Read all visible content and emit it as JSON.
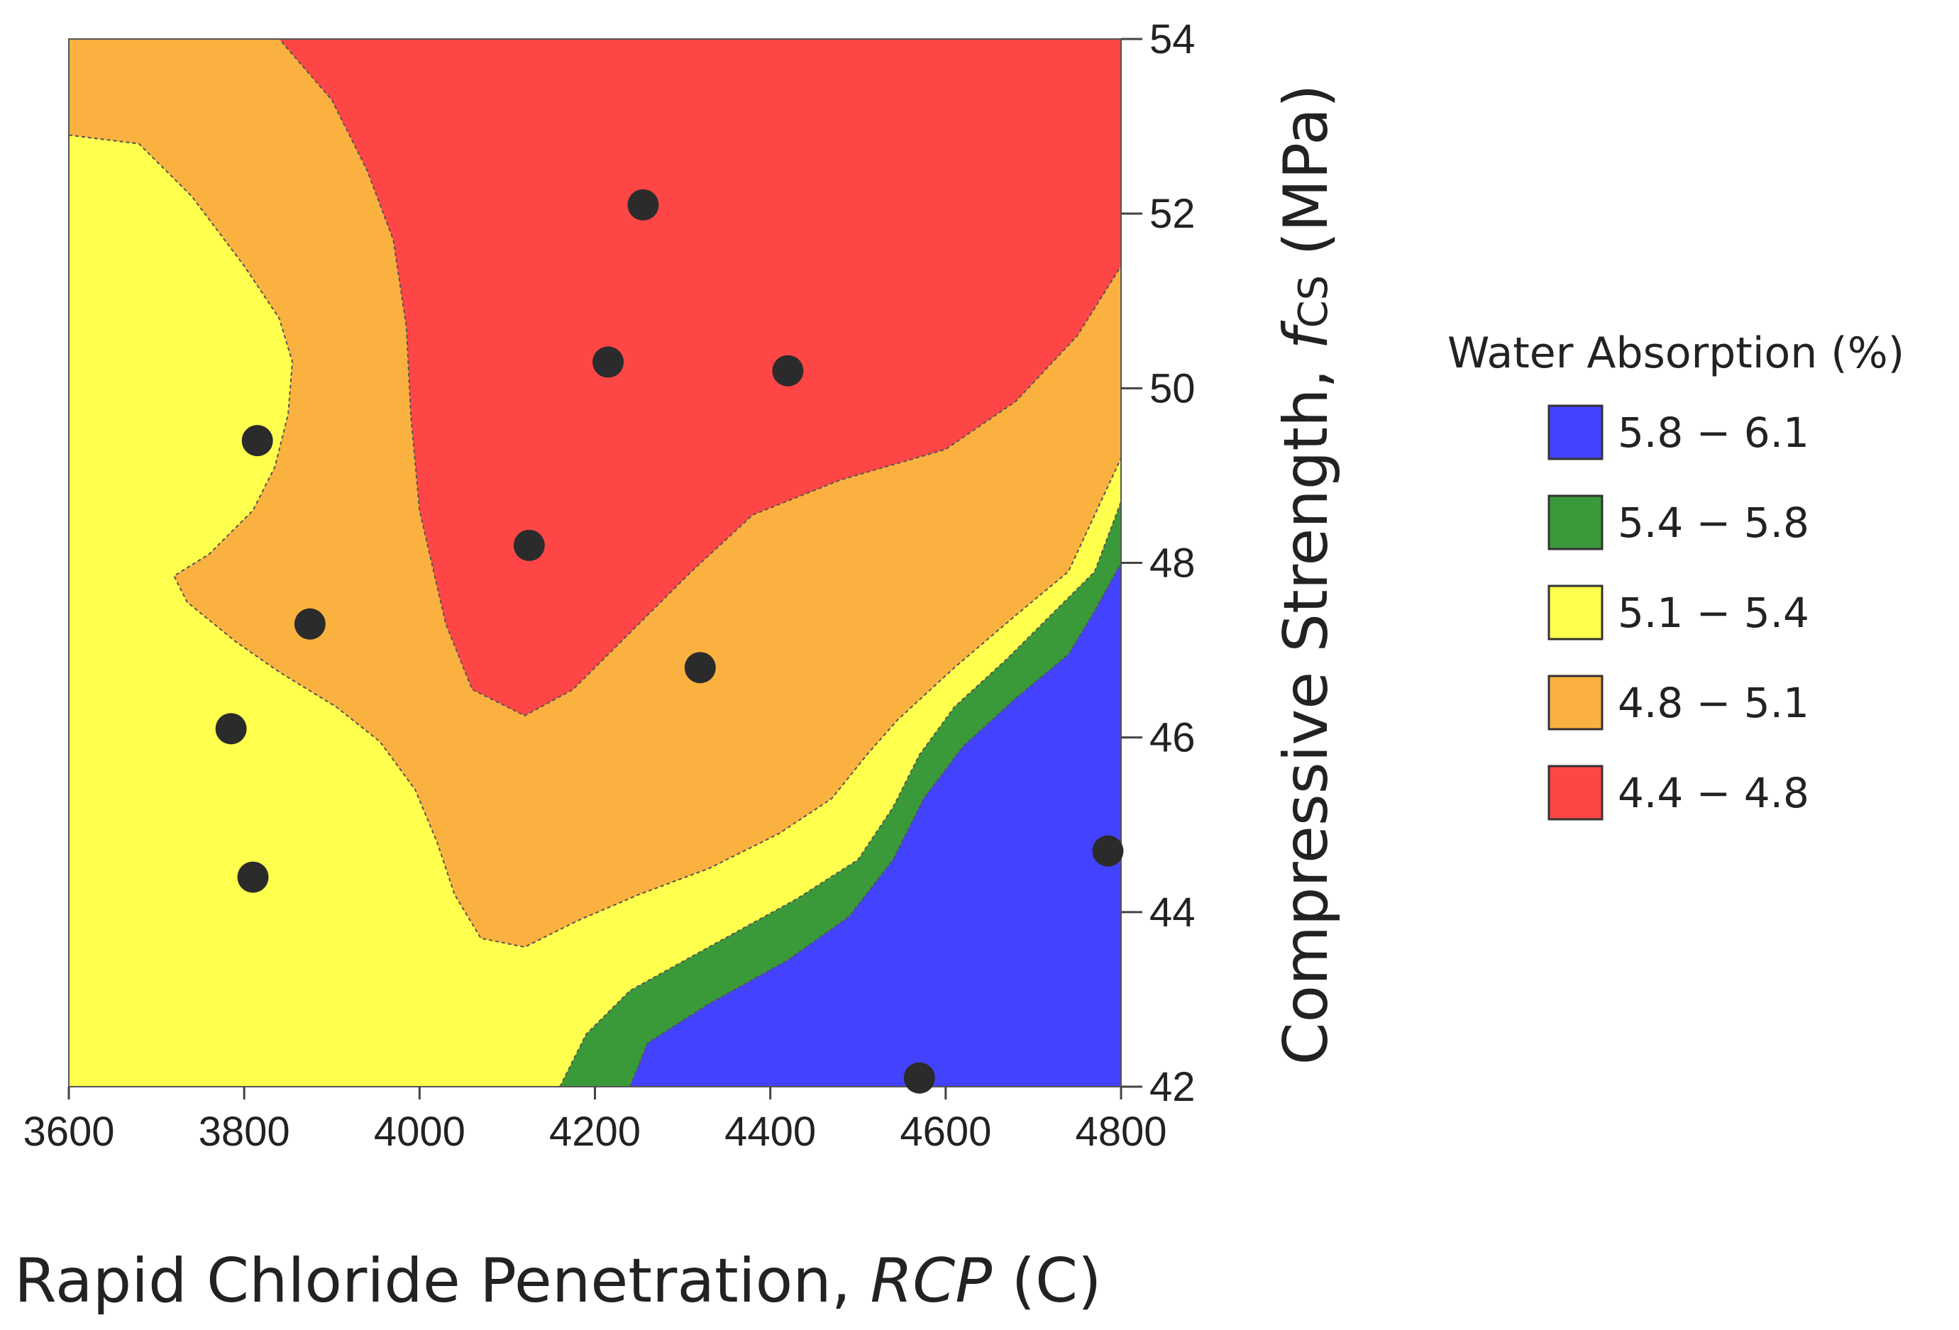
{
  "chart_data": {
    "type": "contour",
    "title": "",
    "xlabel": {
      "main": "Rapid Chloride Penetration, ",
      "italic": "RCP",
      "suffix": " (C)"
    },
    "ylabel": {
      "main": "Compressive Strength, ",
      "italic": "f",
      "subscript": "CS",
      "suffix": " (MPa)"
    },
    "xlim": [
      3600,
      4800
    ],
    "ylim": [
      42,
      54
    ],
    "xticks": [
      3600,
      3800,
      4000,
      4200,
      4400,
      4600,
      4800
    ],
    "yticks": [
      42,
      44,
      46,
      48,
      50,
      52,
      54
    ],
    "legend": {
      "title": "Water Absorption (%)",
      "position": "right",
      "entries": [
        {
          "label": "5.8 − 6.1",
          "color": "#4343ff"
        },
        {
          "label": "5.4 − 5.8",
          "color": "#3a9a3a"
        },
        {
          "label": "5.1 − 5.4",
          "color": "#ffff4d"
        },
        {
          "label": "4.8 − 5.1",
          "color": "#fbb140"
        },
        {
          "label": "4.4 − 4.8",
          "color": "#ff4646"
        }
      ]
    },
    "regions": [
      {
        "range": "4.8 − 5.1",
        "color": "#fbb140",
        "boundary": [
          [
            3600,
            54
          ],
          [
            4800,
            54
          ],
          [
            4800,
            42
          ],
          [
            3600,
            42
          ]
        ]
      },
      {
        "range": "5.1 − 5.4",
        "color": "#ffff4d",
        "boundary": [
          [
            3600,
            52.9
          ],
          [
            3680,
            52.8
          ],
          [
            3740,
            52.2
          ],
          [
            3800,
            51.4
          ],
          [
            3840,
            50.8
          ],
          [
            3855,
            50.3
          ],
          [
            3850,
            49.7
          ],
          [
            3835,
            49.1
          ],
          [
            3810,
            48.6
          ],
          [
            3760,
            48.1
          ],
          [
            3720,
            47.85
          ],
          [
            3735,
            47.55
          ],
          [
            3790,
            47.1
          ],
          [
            3840,
            46.75
          ],
          [
            3905,
            46.35
          ],
          [
            3955,
            45.95
          ],
          [
            3995,
            45.4
          ],
          [
            4020,
            44.8
          ],
          [
            4040,
            44.2
          ],
          [
            4070,
            43.7
          ],
          [
            4120,
            43.6
          ],
          [
            4180,
            43.9
          ],
          [
            4250,
            44.2
          ],
          [
            4330,
            44.5
          ],
          [
            4410,
            44.9
          ],
          [
            4470,
            45.3
          ],
          [
            4510,
            45.8
          ],
          [
            4545,
            46.2
          ],
          [
            4610,
            46.8
          ],
          [
            4680,
            47.4
          ],
          [
            4740,
            47.9
          ],
          [
            4800,
            49.2
          ],
          [
            4800,
            42
          ],
          [
            3600,
            42
          ]
        ]
      },
      {
        "range": "5.4 − 5.8",
        "color": "#3a9a3a",
        "boundary": [
          [
            4160,
            42
          ],
          [
            4190,
            42.6
          ],
          [
            4240,
            43.1
          ],
          [
            4330,
            43.6
          ],
          [
            4430,
            44.15
          ],
          [
            4500,
            44.6
          ],
          [
            4540,
            45.2
          ],
          [
            4570,
            45.8
          ],
          [
            4610,
            46.35
          ],
          [
            4670,
            46.9
          ],
          [
            4730,
            47.5
          ],
          [
            4770,
            47.9
          ],
          [
            4800,
            48.7
          ],
          [
            4800,
            42
          ]
        ]
      },
      {
        "range": "5.8 − 6.1",
        "color": "#4343ff",
        "boundary": [
          [
            4240,
            42
          ],
          [
            4260,
            42.5
          ],
          [
            4330,
            42.95
          ],
          [
            4420,
            43.45
          ],
          [
            4490,
            43.95
          ],
          [
            4540,
            44.6
          ],
          [
            4575,
            45.3
          ],
          [
            4620,
            45.9
          ],
          [
            4680,
            46.45
          ],
          [
            4740,
            46.95
          ],
          [
            4770,
            47.45
          ],
          [
            4800,
            48.0
          ],
          [
            4800,
            42
          ]
        ]
      },
      {
        "range": "4.4 − 4.8",
        "color": "#ff4646",
        "boundary": [
          [
            3840,
            54
          ],
          [
            4800,
            54
          ],
          [
            4800,
            51.4
          ],
          [
            4750,
            50.6
          ],
          [
            4680,
            49.85
          ],
          [
            4600,
            49.3
          ],
          [
            4480,
            48.95
          ],
          [
            4380,
            48.55
          ],
          [
            4310,
            47.9
          ],
          [
            4240,
            47.2
          ],
          [
            4175,
            46.55
          ],
          [
            4120,
            46.25
          ],
          [
            4060,
            46.55
          ],
          [
            4030,
            47.3
          ],
          [
            4000,
            48.6
          ],
          [
            3990,
            49.7
          ],
          [
            3985,
            50.7
          ],
          [
            3970,
            51.7
          ],
          [
            3940,
            52.5
          ],
          [
            3900,
            53.3
          ]
        ]
      }
    ],
    "points": [
      {
        "x": 4255,
        "y": 52.1
      },
      {
        "x": 4215,
        "y": 50.3
      },
      {
        "x": 4420,
        "y": 50.2
      },
      {
        "x": 3815,
        "y": 49.4
      },
      {
        "x": 4125,
        "y": 48.2
      },
      {
        "x": 3875,
        "y": 47.3
      },
      {
        "x": 4320,
        "y": 46.8
      },
      {
        "x": 3785,
        "y": 46.1
      },
      {
        "x": 3810,
        "y": 44.4
      },
      {
        "x": 4785,
        "y": 44.7
      },
      {
        "x": 4570,
        "y": 42.1
      }
    ]
  }
}
